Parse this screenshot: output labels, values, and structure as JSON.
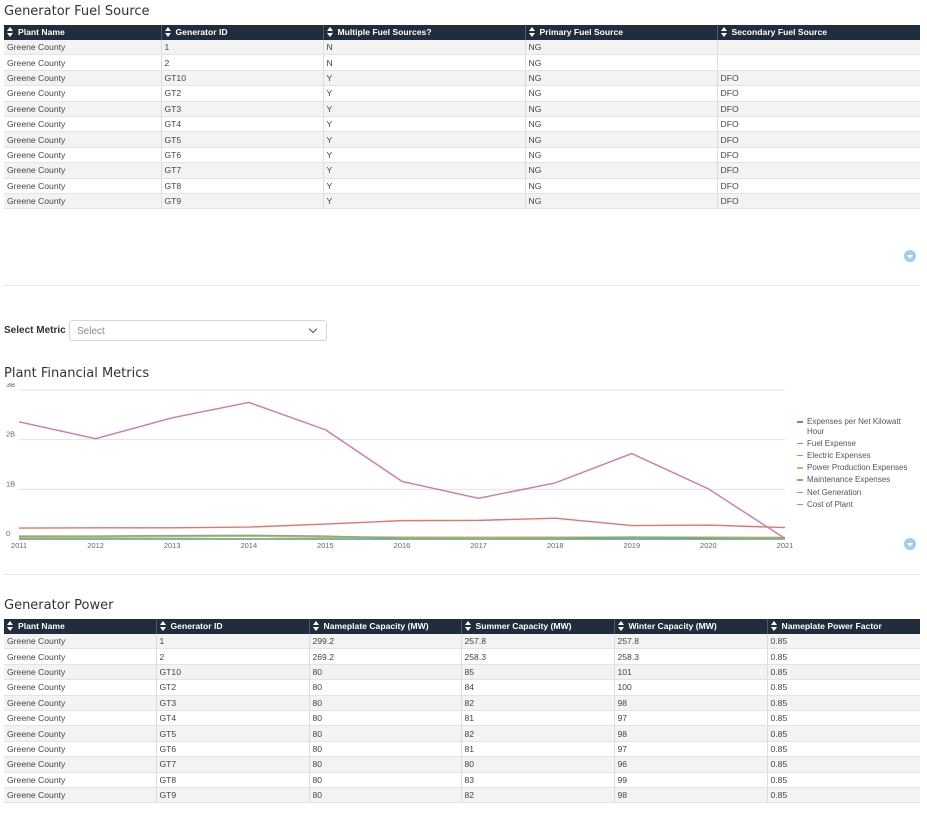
{
  "fuel_section": {
    "title": "Generator Fuel Source",
    "columns": [
      "Plant Name",
      "Generator ID",
      "Multiple Fuel Sources?",
      "Primary Fuel Source",
      "Secondary Fuel Source"
    ],
    "rows": [
      [
        "Greene County",
        "1",
        "N",
        "NG",
        ""
      ],
      [
        "Greene County",
        "2",
        "N",
        "NG",
        ""
      ],
      [
        "Greene County",
        "GT10",
        "Y",
        "NG",
        "DFO"
      ],
      [
        "Greene County",
        "GT2",
        "Y",
        "NG",
        "DFO"
      ],
      [
        "Greene County",
        "GT3",
        "Y",
        "NG",
        "DFO"
      ],
      [
        "Greene County",
        "GT4",
        "Y",
        "NG",
        "DFO"
      ],
      [
        "Greene County",
        "GT5",
        "Y",
        "NG",
        "DFO"
      ],
      [
        "Greene County",
        "GT6",
        "Y",
        "NG",
        "DFO"
      ],
      [
        "Greene County",
        "GT7",
        "Y",
        "NG",
        "DFO"
      ],
      [
        "Greene County",
        "GT8",
        "Y",
        "NG",
        "DFO"
      ],
      [
        "Greene County",
        "GT9",
        "Y",
        "NG",
        "DFO"
      ]
    ]
  },
  "metric_select": {
    "label": "Select Metric",
    "placeholder": "Select"
  },
  "financial_section": {
    "title": "Plant Financial Metrics"
  },
  "chart_data": {
    "type": "line",
    "x": [
      2011,
      2012,
      2013,
      2014,
      2015,
      2016,
      2017,
      2018,
      2019,
      2020,
      2021
    ],
    "ylim": [
      0,
      3000000000
    ],
    "yticks": [
      0,
      1000000000,
      2000000000,
      3000000000
    ],
    "ytick_labels": [
      "0",
      "1B",
      "2B",
      "3B"
    ],
    "grid": true,
    "legend_position": "right",
    "series": [
      {
        "name": "Expenses per Net Kilowatt Hour",
        "color": "#4e9f8f",
        "values": [
          0,
          0,
          0,
          0,
          0,
          0,
          0,
          0,
          0,
          0,
          0
        ]
      },
      {
        "name": "Fuel Expense",
        "color": "#8a9a5b",
        "values": [
          35000000,
          40000000,
          50000000,
          60000000,
          40000000,
          30000000,
          30000000,
          30000000,
          30000000,
          30000000,
          30000000
        ]
      },
      {
        "name": "Electric Expenses",
        "color": "#e08b3c",
        "values": [
          40000000,
          45000000,
          55000000,
          65000000,
          45000000,
          35000000,
          32000000,
          35000000,
          40000000,
          35000000,
          20000000
        ]
      },
      {
        "name": "Power Production Expenses",
        "color": "#d9b44a",
        "values": [
          30000000,
          35000000,
          45000000,
          55000000,
          35000000,
          30000000,
          28000000,
          30000000,
          35000000,
          30000000,
          15000000
        ]
      },
      {
        "name": "Maintenance Expenses",
        "color": "#7fae8a",
        "values": [
          60000000,
          60000000,
          70000000,
          75000000,
          60000000,
          15000000,
          10000000,
          15000000,
          40000000,
          20000000,
          5000000
        ]
      },
      {
        "name": "Net Generation",
        "color": "#e0766e",
        "values": [
          220000000,
          225000000,
          225000000,
          240000000,
          300000000,
          370000000,
          375000000,
          420000000,
          270000000,
          280000000,
          230000000
        ]
      },
      {
        "name": "Cost of Plant",
        "color": "#cc79b0",
        "values": [
          2360000000,
          2020000000,
          2440000000,
          2750000000,
          2200000000,
          1160000000,
          820000000,
          1130000000,
          1720000000,
          1010000000,
          10000000
        ]
      }
    ]
  },
  "power_section": {
    "title": "Generator Power",
    "columns": [
      "Plant Name",
      "Generator ID",
      "Nameplate Capacity (MW)",
      "Summer Capacity (MW)",
      "Winter Capacity (MW)",
      "Nameplate Power Factor"
    ],
    "rows": [
      [
        "Greene County",
        "1",
        "299.2",
        "257.8",
        "257.8",
        "0.85"
      ],
      [
        "Greene County",
        "2",
        "269.2",
        "258.3",
        "258.3",
        "0.85"
      ],
      [
        "Greene County",
        "GT10",
        "80",
        "85",
        "101",
        "0.85"
      ],
      [
        "Greene County",
        "GT2",
        "80",
        "84",
        "100",
        "0.85"
      ],
      [
        "Greene County",
        "GT3",
        "80",
        "82",
        "98",
        "0.85"
      ],
      [
        "Greene County",
        "GT4",
        "80",
        "81",
        "97",
        "0.85"
      ],
      [
        "Greene County",
        "GT5",
        "80",
        "82",
        "98",
        "0.85"
      ],
      [
        "Greene County",
        "GT6",
        "80",
        "81",
        "97",
        "0.85"
      ],
      [
        "Greene County",
        "GT7",
        "80",
        "80",
        "96",
        "0.85"
      ],
      [
        "Greene County",
        "GT8",
        "80",
        "83",
        "99",
        "0.85"
      ],
      [
        "Greene County",
        "GT9",
        "80",
        "82",
        "98",
        "0.85"
      ]
    ]
  }
}
